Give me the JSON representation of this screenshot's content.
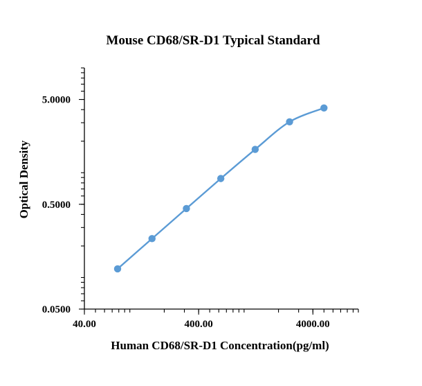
{
  "chart_data": {
    "type": "scatter",
    "title": "Mouse CD68/SR-D1 Typical Standard",
    "xlabel": "Human CD68/SR-D1 Concentration(pg/ml)",
    "ylabel": "Optical Density",
    "x_scale": "log",
    "y_scale": "log",
    "xlim": [
      40,
      10000
    ],
    "ylim": [
      0.05,
      10
    ],
    "x_ticks": [
      {
        "value": 40,
        "label": "40.00"
      },
      {
        "value": 400,
        "label": "400.00"
      },
      {
        "value": 4000,
        "label": "4000.00"
      }
    ],
    "y_ticks": [
      {
        "value": 0.05,
        "label": "0.0500"
      },
      {
        "value": 0.5,
        "label": "0.5000"
      },
      {
        "value": 5,
        "label": "5.0000"
      }
    ],
    "legend": "none",
    "grid": false,
    "series": [
      {
        "color": "#5B9BD5",
        "smooth": true,
        "points": [
          {
            "x": 78.1,
            "y": 0.121
          },
          {
            "x": 156.3,
            "y": 0.235
          },
          {
            "x": 312.5,
            "y": 0.455
          },
          {
            "x": 625,
            "y": 0.88
          },
          {
            "x": 1250,
            "y": 1.67
          },
          {
            "x": 2500,
            "y": 3.06
          },
          {
            "x": 5000,
            "y": 4.15
          }
        ]
      }
    ]
  }
}
